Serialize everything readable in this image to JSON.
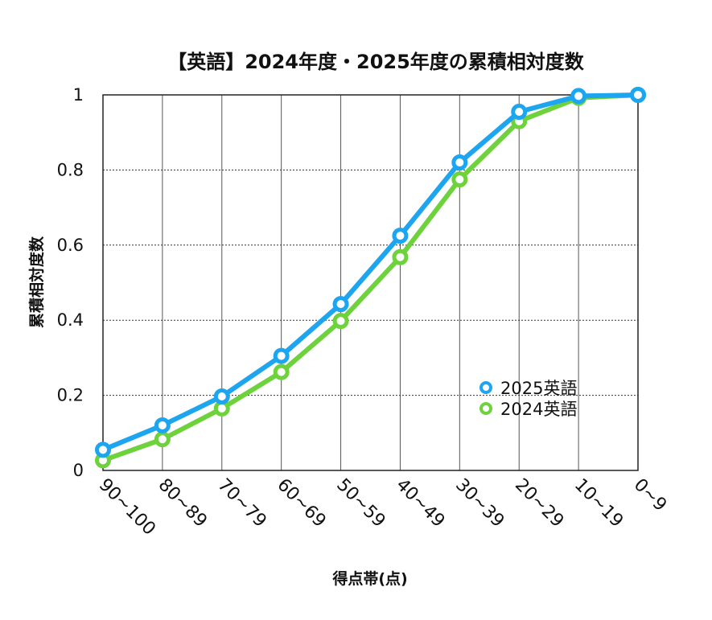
{
  "chart_data": {
    "type": "line",
    "title": "【英語】2024年度・2025年度の累積相対度数",
    "xlabel": "得点帯(点)",
    "ylabel": "累積相対度数",
    "categories": [
      "90~100",
      "80~89",
      "70~79",
      "60~69",
      "50~59",
      "40~49",
      "30~39",
      "20~29",
      "10~19",
      "0~9"
    ],
    "yticks": [
      "0",
      "0.2",
      "0.4",
      "0.6",
      "0.8",
      "1"
    ],
    "ylim": [
      0,
      1
    ],
    "grid": {
      "vertical": "solid",
      "horizontal": "dotted"
    },
    "legend_position": "bottom-right",
    "series": [
      {
        "name": "2025英語",
        "color": "#1ea5f0",
        "values": [
          0.055,
          0.12,
          0.197,
          0.305,
          0.443,
          0.625,
          0.82,
          0.955,
          0.997,
          1.0
        ]
      },
      {
        "name": "2024英語",
        "color": "#6ed23c",
        "values": [
          0.027,
          0.083,
          0.165,
          0.262,
          0.398,
          0.568,
          0.775,
          0.93,
          0.992,
          1.0
        ]
      }
    ]
  }
}
